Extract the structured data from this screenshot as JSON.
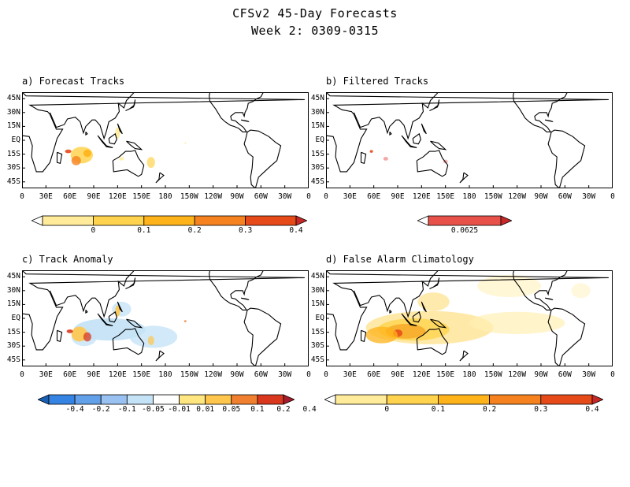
{
  "figure": {
    "title_line1": "CFSv2 45-Day Forecasts",
    "title_line2": "Week 2: 0309-0315"
  },
  "panels": [
    {
      "id": "a",
      "title": "a) Forecast Tracks",
      "colorbar": [
        "0",
        "0.1",
        "0.2",
        "0.3",
        "0.4"
      ]
    },
    {
      "id": "b",
      "title": "b) Filtered Tracks",
      "colorbar": [
        "0.0625"
      ]
    },
    {
      "id": "c",
      "title": "c) Track Anomaly",
      "colorbar": [
        "-0.4",
        "-0.2",
        "-0.1",
        "-0.05",
        "-0.01",
        "0.01",
        "0.05",
        "0.1",
        "0.2",
        "0.4"
      ]
    },
    {
      "id": "d",
      "title": "d) False Alarm Climatology",
      "colorbar": [
        "0",
        "0.1",
        "0.2",
        "0.3",
        "0.4"
      ]
    }
  ],
  "lat_labels": [
    "45N",
    "30N",
    "15N",
    "EQ",
    "15S",
    "30S",
    "45S"
  ],
  "lon_labels": [
    "0",
    "30E",
    "60E",
    "90E",
    "120E",
    "150E",
    "180",
    "150W",
    "120W",
    "90W",
    "60W",
    "30W",
    "0"
  ],
  "colors": {
    "seq": [
      "#ffffff",
      "#ffeb99",
      "#ffd34d",
      "#ffb31a",
      "#f5821f",
      "#e64a19",
      "#c62828"
    ],
    "div": [
      "#1a5fb4",
      "#3584e4",
      "#62a0ea",
      "#99c1f1",
      "#c5e3f6",
      "#ffffff",
      "#ffe680",
      "#ffc64d",
      "#f08030",
      "#d9381e",
      "#a51d2d"
    ]
  }
}
